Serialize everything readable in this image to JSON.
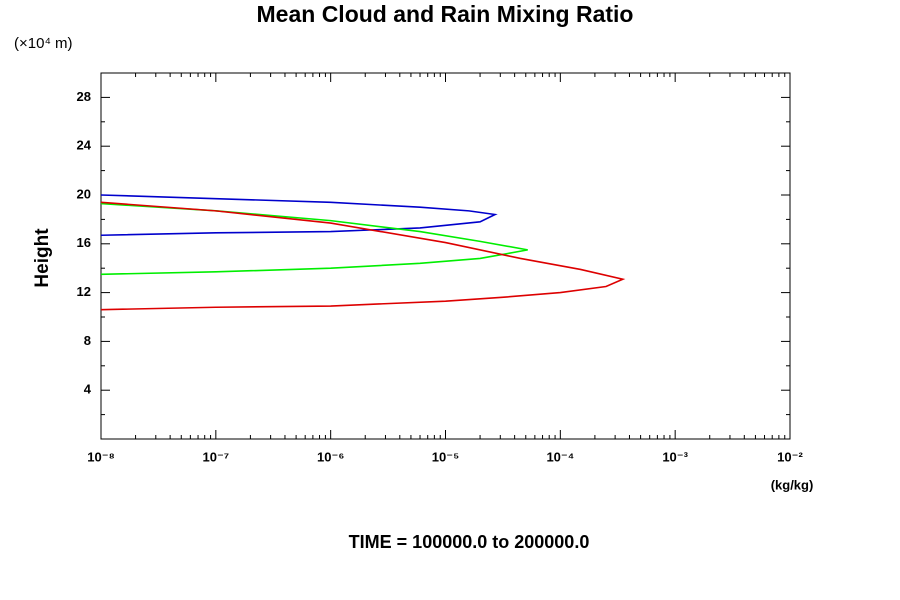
{
  "chart_data": {
    "type": "line",
    "title": "Mean Cloud and Rain Mixing Ratio",
    "y_unit_note": "(×10⁴ m)",
    "ylabel": "Height",
    "xlabel": "(kg/kg)",
    "footer": "TIME = 100000.0 to 200000.0",
    "xscale": "log",
    "xlim": [
      1e-08,
      0.01
    ],
    "xticks": [
      {
        "value": 1e-08,
        "label": "10⁻⁸"
      },
      {
        "value": 1e-07,
        "label": "10⁻⁷"
      },
      {
        "value": 1e-06,
        "label": "10⁻⁶"
      },
      {
        "value": 1e-05,
        "label": "10⁻⁵"
      },
      {
        "value": 0.0001,
        "label": "10⁻⁴"
      },
      {
        "value": 0.001,
        "label": "10⁻³"
      },
      {
        "value": 0.01,
        "label": "10⁻²"
      }
    ],
    "ylim": [
      0,
      30
    ],
    "yticks": [
      4,
      8,
      12,
      16,
      20,
      24,
      28
    ],
    "series": [
      {
        "color": "#0000cc",
        "x": [
          1e-08,
          1e-07,
          1e-06,
          6e-06,
          1.6e-05,
          2.7e-05,
          2e-05,
          6e-06,
          1e-06,
          1e-07,
          1e-08
        ],
        "values": [
          20.0,
          19.7,
          19.4,
          19.0,
          18.7,
          18.4,
          17.8,
          17.3,
          17.0,
          16.9,
          16.7
        ]
      },
      {
        "color": "#00ee00",
        "x": [
          1e-08,
          1e-07,
          1e-06,
          6e-06,
          2e-05,
          5.2e-05,
          2e-05,
          6e-06,
          1e-06,
          1e-07,
          1e-08
        ],
        "values": [
          19.3,
          18.7,
          17.9,
          17.0,
          16.2,
          15.5,
          14.8,
          14.4,
          14.0,
          13.7,
          13.5
        ]
      },
      {
        "color": "#dd0000",
        "x": [
          1e-08,
          1e-07,
          1e-06,
          1e-05,
          4.5e-05,
          0.00015,
          0.00035,
          0.00025,
          0.0001,
          3e-05,
          1e-05,
          1e-06,
          1e-07,
          1e-08
        ],
        "values": [
          19.4,
          18.7,
          17.7,
          16.1,
          14.8,
          13.9,
          13.1,
          12.5,
          12.0,
          11.6,
          11.3,
          10.9,
          10.8,
          10.6
        ]
      }
    ]
  }
}
